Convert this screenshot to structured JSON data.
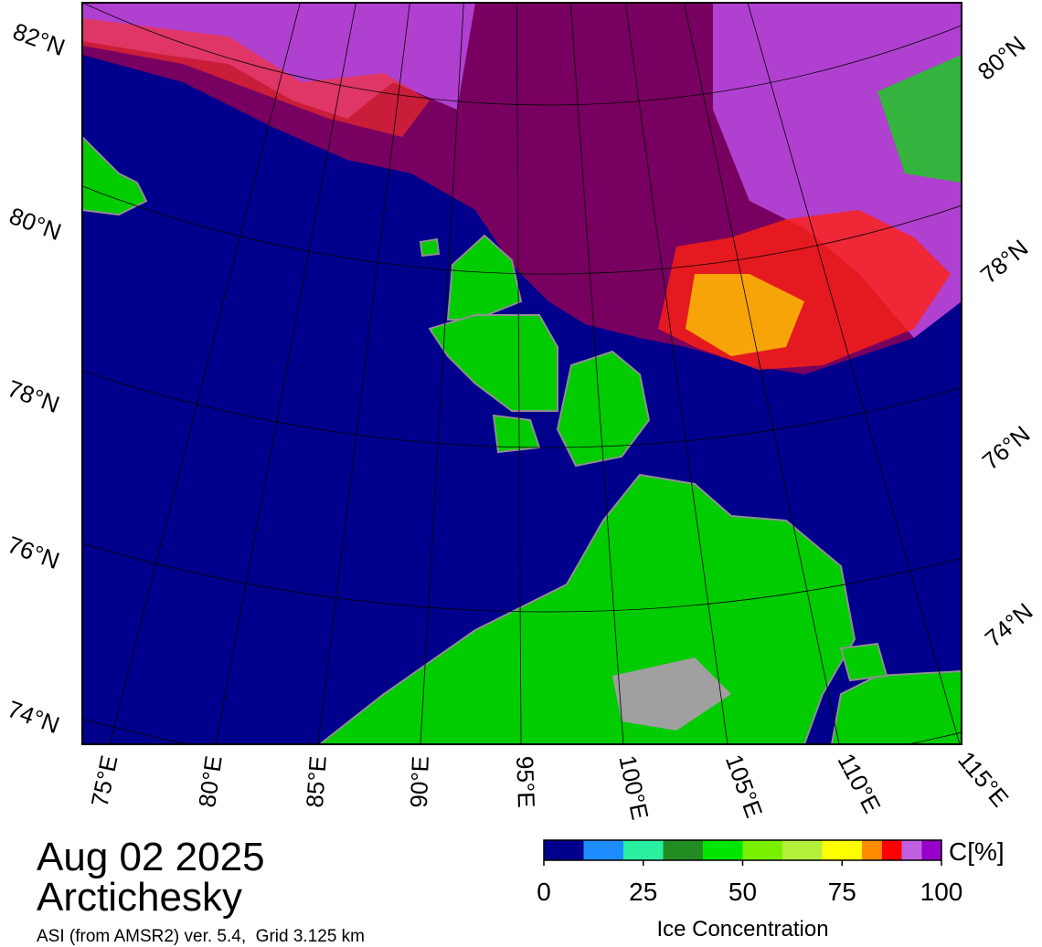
{
  "map": {
    "lat_labels_left": [
      "82°N",
      "80°N",
      "78°N",
      "76°N",
      "74°N"
    ],
    "lat_labels_right": [
      "80°N",
      "78°N",
      "76°N",
      "74°N"
    ],
    "lon_labels": [
      "75°E",
      "80°E",
      "85°E",
      "90°E",
      "95°E",
      "100°E",
      "105°E",
      "110°E",
      "115°E"
    ]
  },
  "info": {
    "date": "Aug 02 2025",
    "region": "Arctichesky",
    "subtitle": "ASI (from AMSR2) ver. 5.4,  Grid 3.125 km"
  },
  "colorbar": {
    "unit_label": "C[%]",
    "label": "Ice Concentration",
    "lim": [
      0,
      100
    ],
    "ticks": [
      0,
      25,
      50,
      75,
      100
    ],
    "bounds": [
      0,
      10,
      20,
      30,
      40,
      50,
      60,
      70,
      80,
      85,
      90,
      95,
      100
    ],
    "colors": [
      "#00008c",
      "#1e8cff",
      "#28f0a0",
      "#228b22",
      "#00e600",
      "#78f000",
      "#b4f03c",
      "#ffff00",
      "#ff8c00",
      "#ff0000",
      "#c060e0",
      "#9600c8"
    ]
  }
}
